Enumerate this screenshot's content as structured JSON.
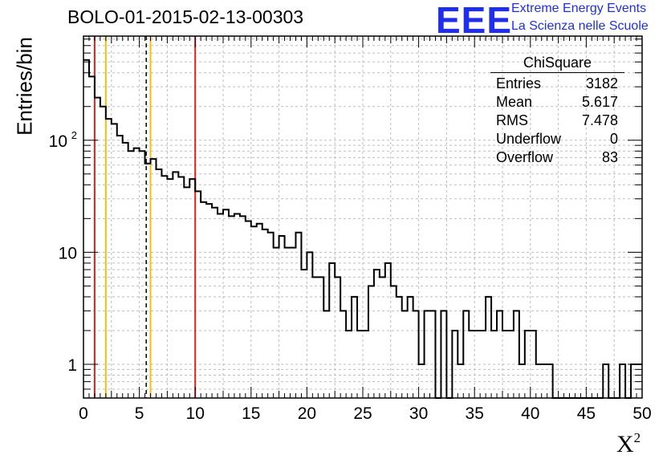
{
  "header": {
    "title": "BOLO-01-2015-02-13-00303",
    "logo_text": "EEE",
    "logo_line1": "Extreme Energy Events",
    "logo_line2": "La Scienza nelle Scuole"
  },
  "stats_box": {
    "title": "ChiSquare",
    "rows": [
      {
        "label": "Entries",
        "value": "3182"
      },
      {
        "label": "Mean",
        "value": "5.617"
      },
      {
        "label": "RMS",
        "value": "7.478"
      },
      {
        "label": "Underflow",
        "value": "0"
      },
      {
        "label": "Overflow",
        "value": "83"
      }
    ]
  },
  "chart_data": {
    "type": "histogram",
    "title": "BOLO-01-2015-02-13-00303",
    "xlabel": "X",
    "xlabel_superscript": "2",
    "ylabel": "Entries/bin",
    "xlim": [
      0,
      50
    ],
    "ylim": [
      0.5,
      850
    ],
    "yscale": "log",
    "grid": true,
    "bin_width": 0.5,
    "x_ticks": [
      "0",
      "5",
      "10",
      "15",
      "20",
      "25",
      "30",
      "35",
      "40",
      "45",
      "50"
    ],
    "y_ticks": [
      {
        "value": 1,
        "label": "1"
      },
      {
        "value": 10,
        "label": "10"
      },
      {
        "value": 100,
        "label": "10",
        "exponent": "2"
      }
    ],
    "values": [
      520,
      370,
      240,
      200,
      155,
      140,
      110,
      95,
      80,
      85,
      80,
      62,
      68,
      55,
      48,
      45,
      52,
      47,
      38,
      45,
      35,
      28,
      27,
      25,
      22,
      24,
      21,
      22,
      21,
      19,
      17,
      18,
      16,
      15,
      11,
      14,
      11,
      11,
      15,
      7,
      10,
      6,
      6,
      3,
      8,
      6,
      3,
      2,
      4,
      2,
      2,
      5,
      7,
      6,
      8,
      5,
      4,
      3,
      4,
      3,
      1,
      3,
      3,
      0,
      3,
      0,
      2,
      1,
      3,
      2,
      2,
      2,
      4,
      2,
      3,
      2,
      2,
      3,
      1,
      2,
      2,
      1,
      1,
      1,
      0,
      0,
      0,
      0,
      0,
      0,
      0,
      0,
      0,
      1,
      0,
      0,
      1,
      0,
      1,
      1
    ],
    "vertical_lines": [
      {
        "x": 1,
        "color": "#e3211c",
        "style": "solid"
      },
      {
        "x": 2,
        "color": "#f2c012",
        "style": "solid"
      },
      {
        "x": 5.617,
        "color": "#000000",
        "style": "dashed"
      },
      {
        "x": 6,
        "color": "#f2c012",
        "style": "solid"
      },
      {
        "x": 10,
        "color": "#e3211c",
        "style": "solid"
      }
    ]
  }
}
